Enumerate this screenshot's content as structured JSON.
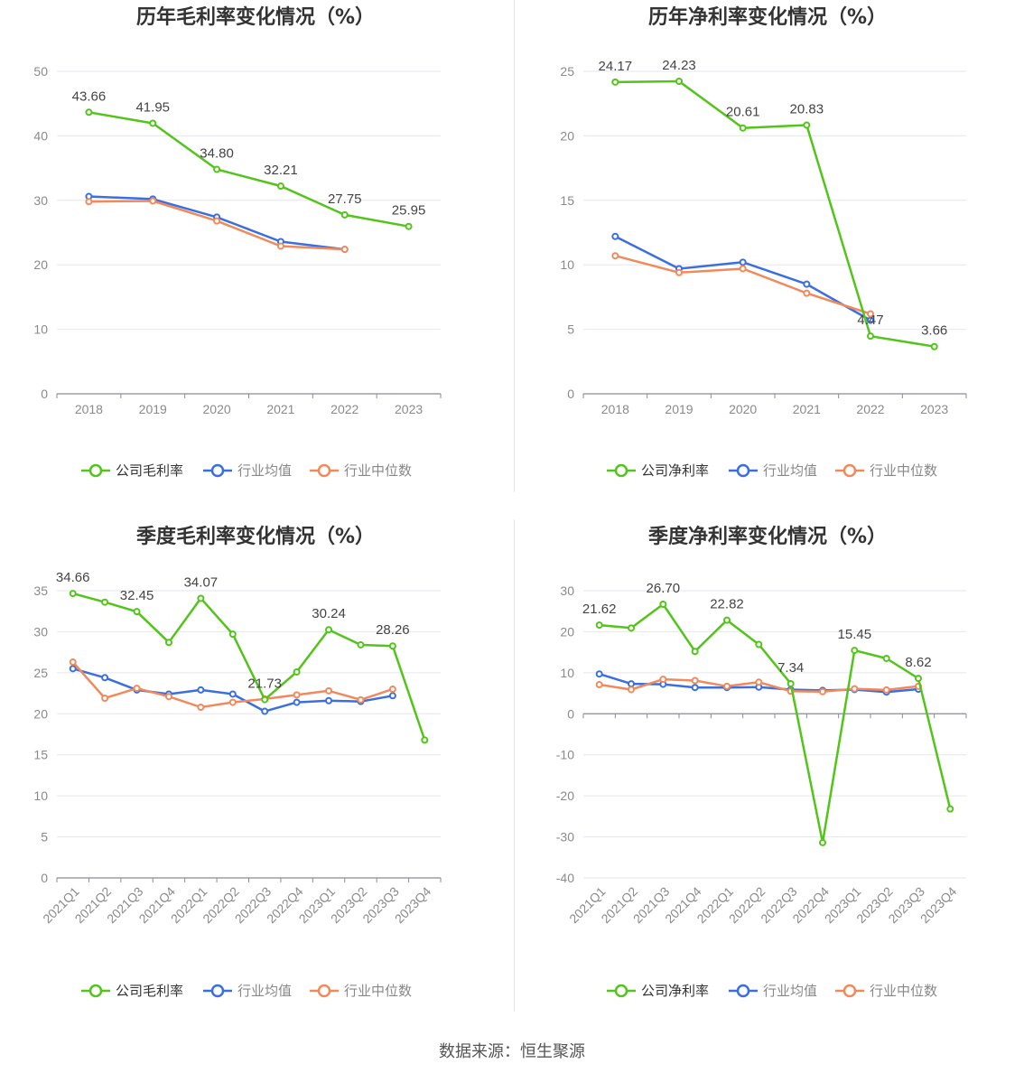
{
  "source": "数据来源：恒生聚源",
  "colors": {
    "company": "#52c41a",
    "avg": "#3b6fe0",
    "median": "#f08a5d",
    "grid": "#e6e6ee",
    "axis": "#8a8a9a",
    "tick": "#8a8a8a",
    "title": "#333333",
    "label": "#444444"
  },
  "legend_labels": {
    "avg": "行业均值",
    "median": "行业中位数"
  },
  "chart_data": [
    {
      "type": "line",
      "title": "历年毛利率变化情况（%）",
      "categories": [
        "2018",
        "2019",
        "2020",
        "2021",
        "2022",
        "2023"
      ],
      "ylim": [
        0,
        50
      ],
      "yticks": [
        0,
        10,
        20,
        30,
        40,
        50
      ],
      "ytick_labels": [
        "0",
        "10",
        "20",
        "30",
        "40",
        "50"
      ],
      "rotate_x": false,
      "series": [
        {
          "name": "公司毛利率",
          "role": "company",
          "values": [
            43.66,
            41.95,
            34.8,
            32.21,
            27.75,
            25.95
          ],
          "labels": [
            "43.66",
            "41.95",
            "34.80",
            "32.21",
            "27.75",
            "25.95"
          ]
        },
        {
          "name": "行业均值",
          "role": "avg",
          "values": [
            30.6,
            30.2,
            27.4,
            23.6,
            22.4,
            null
          ]
        },
        {
          "name": "行业中位数",
          "role": "median",
          "values": [
            29.8,
            29.9,
            26.8,
            22.9,
            22.4,
            null
          ]
        }
      ]
    },
    {
      "type": "line",
      "title": "历年净利率变化情况（%）",
      "categories": [
        "2018",
        "2019",
        "2020",
        "2021",
        "2022",
        "2023"
      ],
      "ylim": [
        0,
        25
      ],
      "yticks": [
        0,
        5,
        10,
        15,
        20,
        25
      ],
      "ytick_labels": [
        "0",
        "5",
        "10",
        "15",
        "20",
        "25"
      ],
      "rotate_x": false,
      "series": [
        {
          "name": "公司净利率",
          "role": "company",
          "values": [
            24.17,
            24.23,
            20.61,
            20.83,
            4.47,
            3.66
          ],
          "labels": [
            "24.17",
            "24.23",
            "20.61",
            "20.83",
            "4.47",
            "3.66"
          ]
        },
        {
          "name": "行业均值",
          "role": "avg",
          "values": [
            12.2,
            9.7,
            10.2,
            8.5,
            5.7,
            null
          ]
        },
        {
          "name": "行业中位数",
          "role": "median",
          "values": [
            10.7,
            9.4,
            9.7,
            7.8,
            6.2,
            null
          ]
        }
      ]
    },
    {
      "type": "line",
      "title": "季度毛利率变化情况（%）",
      "categories": [
        "2021Q1",
        "2021Q2",
        "2021Q3",
        "2021Q4",
        "2022Q1",
        "2022Q2",
        "2022Q3",
        "2022Q4",
        "2023Q1",
        "2023Q2",
        "2023Q3",
        "2023Q4"
      ],
      "ylim": [
        0,
        35
      ],
      "yticks": [
        0,
        5,
        10,
        15,
        20,
        25,
        30,
        35
      ],
      "ytick_labels": [
        "0",
        "5",
        "10",
        "15",
        "20",
        "25",
        "30",
        "35"
      ],
      "rotate_x": true,
      "series": [
        {
          "name": "公司毛利率",
          "role": "company",
          "values": [
            34.66,
            33.6,
            32.45,
            28.7,
            34.07,
            29.7,
            21.73,
            25.1,
            30.24,
            28.4,
            28.26,
            16.8
          ],
          "labels": [
            "34.66",
            "",
            "32.45",
            "",
            "34.07",
            "",
            "21.73",
            "",
            "30.24",
            "",
            "28.26",
            ""
          ]
        },
        {
          "name": "行业均值",
          "role": "avg",
          "values": [
            25.5,
            24.4,
            22.9,
            22.4,
            22.9,
            22.4,
            20.3,
            21.4,
            21.6,
            21.5,
            22.2,
            null
          ]
        },
        {
          "name": "行业中位数",
          "role": "median",
          "values": [
            26.3,
            21.9,
            23.1,
            22.1,
            20.8,
            21.4,
            21.8,
            22.3,
            22.8,
            21.7,
            23.0,
            null
          ]
        }
      ]
    },
    {
      "type": "line",
      "title": "季度净利率变化情况（%）",
      "categories": [
        "2021Q1",
        "2021Q2",
        "2021Q3",
        "2021Q4",
        "2022Q1",
        "2022Q2",
        "2022Q3",
        "2022Q4",
        "2023Q1",
        "2023Q2",
        "2023Q3",
        "2023Q4"
      ],
      "ylim": [
        -40,
        30
      ],
      "yticks": [
        -40,
        -30,
        -20,
        -10,
        0,
        10,
        20,
        30
      ],
      "ytick_labels": [
        "-40",
        "-30",
        "-20",
        "-10",
        "0",
        "10",
        "20",
        "30"
      ],
      "rotate_x": true,
      "series": [
        {
          "name": "公司净利率",
          "role": "company",
          "values": [
            21.62,
            20.9,
            26.7,
            15.2,
            22.82,
            16.9,
            7.34,
            -31.4,
            15.45,
            13.5,
            8.62,
            -23.2
          ],
          "labels": [
            "21.62",
            "",
            "26.70",
            "",
            "22.82",
            "",
            "7.34",
            "",
            "15.45",
            "",
            "8.62",
            ""
          ]
        },
        {
          "name": "行业均值",
          "role": "avg",
          "values": [
            9.7,
            7.3,
            7.2,
            6.4,
            6.4,
            6.5,
            5.9,
            5.7,
            5.9,
            5.3,
            6.0,
            null
          ]
        },
        {
          "name": "行业中位数",
          "role": "median",
          "values": [
            7.1,
            5.9,
            8.4,
            8.1,
            6.7,
            7.7,
            5.5,
            5.4,
            6.1,
            5.8,
            6.7,
            null
          ]
        }
      ]
    }
  ]
}
